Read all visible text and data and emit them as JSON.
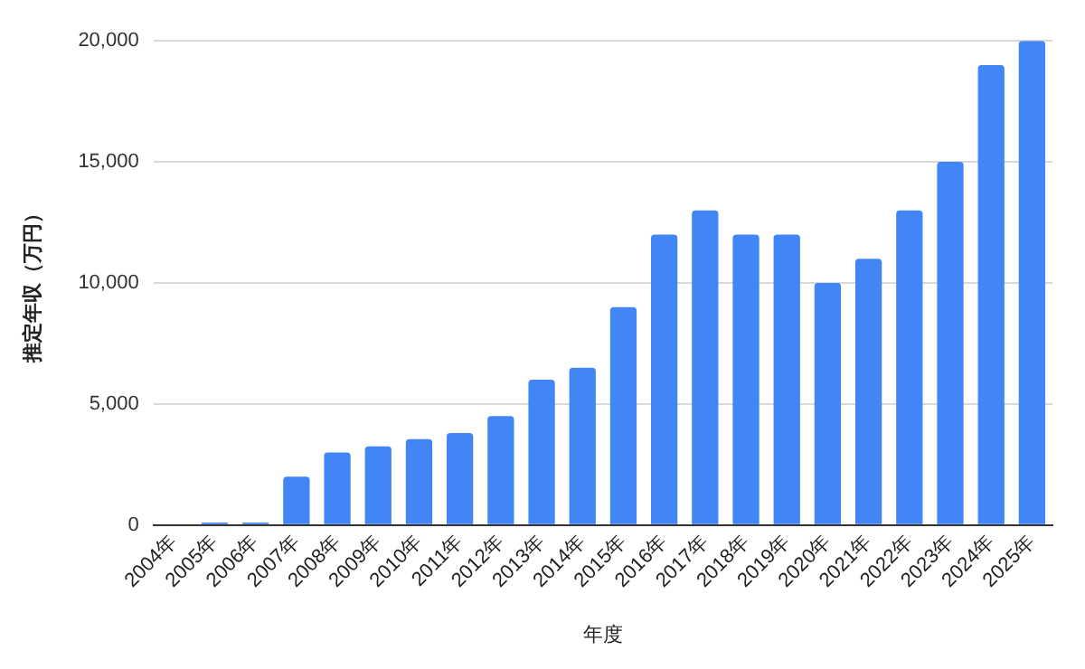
{
  "chart_data": {
    "type": "bar",
    "xlabel": "年度",
    "ylabel": "推定年収（万円）",
    "categories": [
      "2004年",
      "2005年",
      "2006年",
      "2007年",
      "2008年",
      "2009年",
      "2010年",
      "2011年",
      "2012年",
      "2013年",
      "2014年",
      "2015年",
      "2016年",
      "2017年",
      "2018年",
      "2019年",
      "2020年",
      "2021年",
      "2022年",
      "2023年",
      "2024年",
      "2025年"
    ],
    "values": [
      0,
      100,
      100,
      2000,
      3000,
      3250,
      3550,
      3800,
      4500,
      6000,
      6500,
      9000,
      12000,
      13000,
      12000,
      12000,
      10000,
      11000,
      13000,
      15000,
      19000,
      20000
    ],
    "color": "#4285f4",
    "ylim": [
      0,
      20000
    ],
    "yticks": [
      {
        "value": 0,
        "label": "0"
      },
      {
        "value": 5000,
        "label": "5,000"
      },
      {
        "value": 10000,
        "label": "10,000"
      },
      {
        "value": 15000,
        "label": "15,000"
      },
      {
        "value": 20000,
        "label": "20,000"
      }
    ],
    "grid": "y",
    "legend": false
  }
}
